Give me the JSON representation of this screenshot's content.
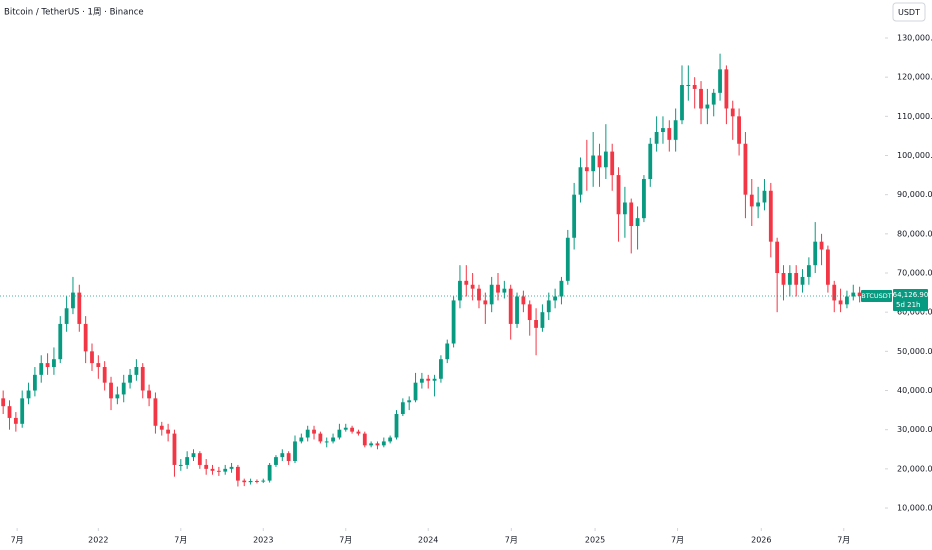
{
  "chart_data": {
    "type": "candlestick",
    "title": "Bitcoin / TetherUS · 1周 · Binance",
    "currency": "USDT",
    "symbol": "BTCUSDT",
    "countdown": "5d 21h",
    "up_color": "#089981",
    "down_color": "#f23645",
    "open": [
      38000,
      36000,
      33000,
      31500,
      38000,
      40000,
      44000,
      47000,
      46000,
      48000,
      57000,
      61000,
      65000,
      57000,
      50000,
      47000,
      46000,
      42000,
      38000,
      39000,
      42000,
      44000,
      46000,
      40000,
      38000,
      31000,
      30000,
      29000,
      21000,
      21000,
      23000,
      24000,
      21000,
      20000,
      19500,
      19300,
      20000,
      20500,
      17000,
      16600,
      16900,
      16800,
      17000,
      21000,
      23000,
      24000,
      22000,
      27000,
      28000,
      30000,
      29000,
      27000,
      27000,
      28000,
      30000,
      30500,
      29500,
      29000,
      26000,
      26500,
      26000,
      27000,
      28000,
      34000,
      37000,
      37500,
      42000,
      43000,
      42500,
      43000,
      48000,
      52000,
      63000,
      68000,
      67000,
      66000,
      63000,
      62000,
      67000,
      65000,
      66000,
      57000,
      64000,
      62000,
      58000,
      56000,
      60000,
      63000,
      64000,
      68000,
      79000,
      90000,
      97000,
      96000,
      100000,
      97000,
      101000,
      95000,
      85000,
      88000,
      82000,
      84000,
      94000,
      103000,
      106000,
      107000,
      104000,
      109000,
      118000,
      118000,
      117000,
      112000,
      113000,
      116000,
      122000,
      112000,
      110000,
      103000,
      90000,
      87000,
      88000,
      91000,
      78000,
      70000,
      67000,
      70000,
      67000,
      69000,
      72000,
      78000,
      76000,
      67000,
      63000,
      62000,
      64000,
      65000
    ],
    "high": [
      40000,
      37500,
      34500,
      40000,
      42000,
      46000,
      49000,
      49500,
      51000,
      59000,
      64000,
      69000,
      67000,
      59000,
      52000,
      49000,
      47500,
      43500,
      41000,
      44000,
      45500,
      48000,
      47000,
      41500,
      39500,
      32000,
      31500,
      30000,
      22500,
      24500,
      25000,
      24500,
      22500,
      21000,
      20500,
      21000,
      21500,
      21000,
      17500,
      17500,
      17300,
      17500,
      21500,
      23500,
      25000,
      24500,
      28500,
      29000,
      31000,
      31000,
      29500,
      28000,
      29000,
      31500,
      31500,
      31000,
      30000,
      29500,
      27000,
      27000,
      28000,
      28500,
      35000,
      38000,
      38500,
      44500,
      44500,
      44000,
      44000,
      49000,
      53000,
      64000,
      72000,
      72000,
      70000,
      67000,
      65000,
      69000,
      70000,
      68000,
      67000,
      65000,
      65500,
      63000,
      61000,
      62000,
      65000,
      66000,
      69000,
      81000,
      93000,
      99500,
      104000,
      106000,
      103000,
      108000,
      103000,
      97000,
      92000,
      89000,
      87000,
      95000,
      104500,
      110000,
      110000,
      109000,
      112000,
      123000,
      123000,
      120000,
      119000,
      117000,
      117000,
      126000,
      123000,
      114000,
      112000,
      106000,
      94000,
      92000,
      94000,
      93000,
      79000,
      72000,
      72000,
      72000,
      71000,
      74000,
      83000,
      80000,
      77000,
      68000,
      66000,
      65500,
      67000,
      66500
    ],
    "low": [
      34000,
      30000,
      29500,
      30500,
      36500,
      38500,
      42000,
      44000,
      44000,
      47000,
      55000,
      59500,
      55000,
      47000,
      45000,
      43000,
      40000,
      35000,
      36500,
      37000,
      40500,
      42500,
      38000,
      36000,
      29000,
      28500,
      27000,
      18000,
      19500,
      20000,
      22000,
      20000,
      18500,
      18500,
      18200,
      18500,
      19000,
      15500,
      15600,
      16000,
      16300,
      16400,
      16500,
      20500,
      22000,
      21000,
      21500,
      26500,
      27000,
      27500,
      26500,
      25500,
      26500,
      27500,
      29500,
      29000,
      28500,
      25500,
      25500,
      25000,
      25500,
      26500,
      27500,
      33500,
      35000,
      37000,
      40500,
      40500,
      38500,
      42000,
      47000,
      51000,
      61000,
      64000,
      63000,
      61000,
      57000,
      60000,
      63000,
      63500,
      53000,
      56000,
      60000,
      54000,
      49000,
      55000,
      58000,
      61000,
      62000,
      67000,
      76000,
      88000,
      91000,
      92000,
      92000,
      94000,
      91000,
      78000,
      79000,
      75000,
      76000,
      83000,
      92000,
      101000,
      103000,
      101000,
      101000,
      108000,
      114000,
      112000,
      108000,
      108000,
      110000,
      114000,
      108000,
      104000,
      100000,
      84000,
      82000,
      84000,
      86000,
      74000,
      60000,
      63000,
      64000,
      64000,
      65000,
      67000,
      70000,
      72000,
      65000,
      60000,
      60000,
      61000,
      63000,
      62500
    ],
    "close": [
      36000,
      33000,
      31500,
      38000,
      40000,
      44000,
      47000,
      46000,
      48000,
      57000,
      61000,
      65000,
      57000,
      50000,
      47000,
      46000,
      42000,
      38000,
      39000,
      42000,
      44000,
      46000,
      40000,
      38000,
      31000,
      30000,
      29000,
      21000,
      21000,
      23000,
      24000,
      21000,
      20000,
      19500,
      19300,
      20000,
      20500,
      17000,
      16600,
      16900,
      16800,
      17000,
      21000,
      23000,
      24000,
      22000,
      27000,
      28000,
      30000,
      29000,
      27000,
      27000,
      28000,
      30000,
      30500,
      29500,
      29000,
      26000,
      26500,
      26000,
      27000,
      28000,
      34000,
      37000,
      37500,
      42000,
      43000,
      42500,
      43000,
      48000,
      52000,
      63000,
      68000,
      67000,
      66000,
      63000,
      62000,
      67000,
      65000,
      66000,
      57000,
      64000,
      62000,
      58000,
      56000,
      60000,
      63000,
      64000,
      68000,
      79000,
      90000,
      97000,
      96000,
      100000,
      97000,
      101000,
      95000,
      85000,
      88000,
      82000,
      84000,
      94000,
      103000,
      106000,
      107000,
      104000,
      109000,
      118000,
      118000,
      117000,
      112000,
      113000,
      116000,
      122000,
      112000,
      110000,
      103000,
      90000,
      87000,
      88000,
      91000,
      78000,
      70000,
      67000,
      70000,
      67000,
      69000,
      72000,
      78000,
      76000,
      67000,
      63000,
      62000,
      64000,
      65000,
      64126.9
    ],
    "last_price": {
      "value": 64126.9,
      "label": "64,126.90"
    },
    "xlim": [
      -0.5,
      139
    ],
    "xticks": [
      {
        "value": 2.2,
        "label": "7月"
      },
      {
        "value": 15,
        "label": "2022"
      },
      {
        "value": 28,
        "label": "7月"
      },
      {
        "value": 41,
        "label": "2023"
      },
      {
        "value": 54,
        "label": "7月"
      },
      {
        "value": 67,
        "label": "2024"
      },
      {
        "value": 80.1,
        "label": "7月"
      },
      {
        "value": 93.3,
        "label": "2025"
      },
      {
        "value": 106.3,
        "label": "7月"
      },
      {
        "value": 119.5,
        "label": "2026"
      },
      {
        "value": 132.5,
        "label": "7月"
      }
    ],
    "ylim": [
      4900,
      139700
    ],
    "yticks": [
      {
        "value": 10000,
        "label": "10,000.00"
      },
      {
        "value": 20000,
        "label": "20,000.00"
      },
      {
        "value": 30000,
        "label": "30,000.00"
      },
      {
        "value": 40000,
        "label": "40,000.00"
      },
      {
        "value": 50000,
        "label": "50,000.00"
      },
      {
        "value": 60000,
        "label": "60,000.00"
      },
      {
        "value": 70000,
        "label": "70,000.00"
      },
      {
        "value": 80000,
        "label": "80,000.00"
      },
      {
        "value": 90000,
        "label": "90,000.00"
      },
      {
        "value": 100000,
        "label": "100,000.00"
      },
      {
        "value": 110000,
        "label": "110,000.00"
      },
      {
        "value": 120000,
        "label": "120,000.00"
      },
      {
        "value": 130000,
        "label": "130,000.00"
      }
    ]
  }
}
